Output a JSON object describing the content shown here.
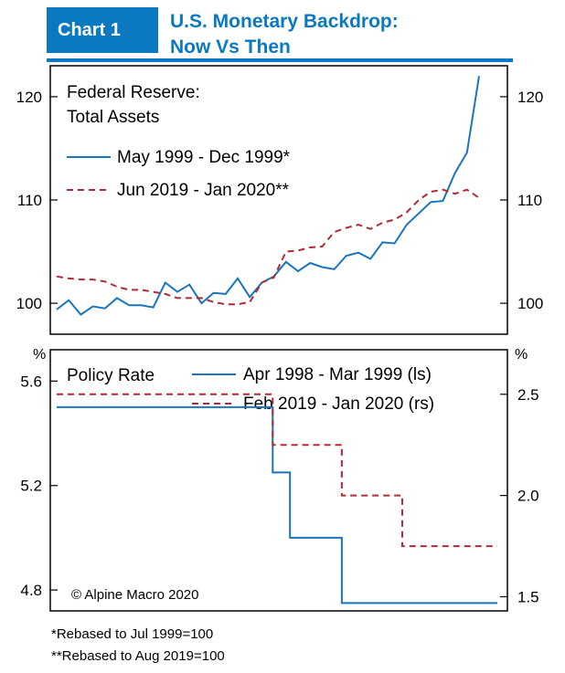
{
  "header": {
    "chart_number": "Chart 1",
    "title_line1": "U.S. Monetary Backdrop:",
    "title_line2": "Now Vs Then"
  },
  "footnotes": [
    "*Rebased to Jul 1999=100",
    "**Rebased to Aug 2019=100"
  ],
  "copyright": "© Alpine Macro 2020",
  "colors": {
    "brand": "#0a79c1",
    "series_then": "#1a75bc",
    "series_now": "#b22a37"
  },
  "chart_data": [
    {
      "type": "line",
      "title": "Federal Reserve:",
      "subtitle": "Total Assets",
      "ylim": [
        97,
        123
      ],
      "yticks": [
        100,
        110,
        120
      ],
      "series": [
        {
          "name": "May 1999 - Dec 1999*",
          "style": "solid",
          "values": [
            99.4,
            100.3,
            98.9,
            99.7,
            99.5,
            100.5,
            99.8,
            99.8,
            99.6,
            102.0,
            101.1,
            101.8,
            100.0,
            101.0,
            100.9,
            102.4,
            100.6,
            102.0,
            102.6,
            104.0,
            103.1,
            103.9,
            103.5,
            103.3,
            104.6,
            104.9,
            104.3,
            105.9,
            105.8,
            107.6,
            108.7,
            109.8,
            109.9,
            112.6,
            114.6,
            122.0
          ]
        },
        {
          "name": "Jun 2019 - Jan 2020**",
          "style": "dashed",
          "values": [
            102.6,
            102.4,
            102.3,
            102.3,
            102.1,
            101.6,
            101.3,
            101.3,
            101.1,
            100.9,
            100.5,
            100.5,
            100.5,
            100.1,
            99.9,
            99.9,
            100.1,
            102.0,
            102.5,
            105.0,
            105.1,
            105.4,
            105.5,
            106.9,
            107.3,
            107.6,
            107.2,
            107.8,
            108.1,
            108.8,
            110.0,
            110.8,
            111.0,
            110.6,
            111.0,
            110.2
          ]
        }
      ]
    },
    {
      "type": "line",
      "title": "Policy Rate",
      "left_unit": "%",
      "right_unit": "%",
      "left_ylim": [
        4.72,
        5.72
      ],
      "right_ylim": [
        1.43,
        2.72
      ],
      "left_yticks": [
        4.8,
        5.2,
        5.6
      ],
      "right_yticks": [
        1.5,
        2.0,
        2.5
      ],
      "left_tick_labels": [
        "4.8",
        "5.2",
        "5.6"
      ],
      "right_tick_labels": [
        "1.5",
        "2.0",
        "2.5"
      ],
      "series": [
        {
          "name": "Apr 1998 - Mar 1999 (ls)",
          "axis": "left",
          "style": "solid",
          "values": [
            5.5,
            5.5,
            5.5,
            5.5,
            5.5,
            5.5,
            5.5,
            5.5,
            5.5,
            5.5,
            5.5,
            5.5,
            5.5,
            5.5,
            5.5,
            5.5,
            5.5,
            5.5,
            5.5,
            5.5,
            5.5,
            5.5,
            5.5,
            5.5,
            5.5,
            5.25,
            5.25,
            5.0,
            5.0,
            5.0,
            5.0,
            5.0,
            5.0,
            4.75,
            4.75,
            4.75,
            4.75,
            4.75,
            4.75,
            4.75,
            4.75,
            4.75,
            4.75,
            4.75,
            4.75,
            4.75,
            4.75,
            4.75,
            4.75,
            4.75,
            4.75,
            4.75
          ]
        },
        {
          "name": "Feb 2019 - Jan 2020 (rs)",
          "axis": "right",
          "style": "dashed",
          "values": [
            2.5,
            2.5,
            2.5,
            2.5,
            2.5,
            2.5,
            2.5,
            2.5,
            2.5,
            2.5,
            2.5,
            2.5,
            2.5,
            2.5,
            2.5,
            2.5,
            2.5,
            2.5,
            2.5,
            2.5,
            2.5,
            2.5,
            2.5,
            2.5,
            2.5,
            2.25,
            2.25,
            2.25,
            2.25,
            2.25,
            2.25,
            2.25,
            2.25,
            2.0,
            2.0,
            2.0,
            2.0,
            2.0,
            2.0,
            2.0,
            1.75,
            1.75,
            1.75,
            1.75,
            1.75,
            1.75,
            1.75,
            1.75,
            1.75,
            1.75,
            1.75,
            1.75
          ]
        }
      ]
    }
  ]
}
